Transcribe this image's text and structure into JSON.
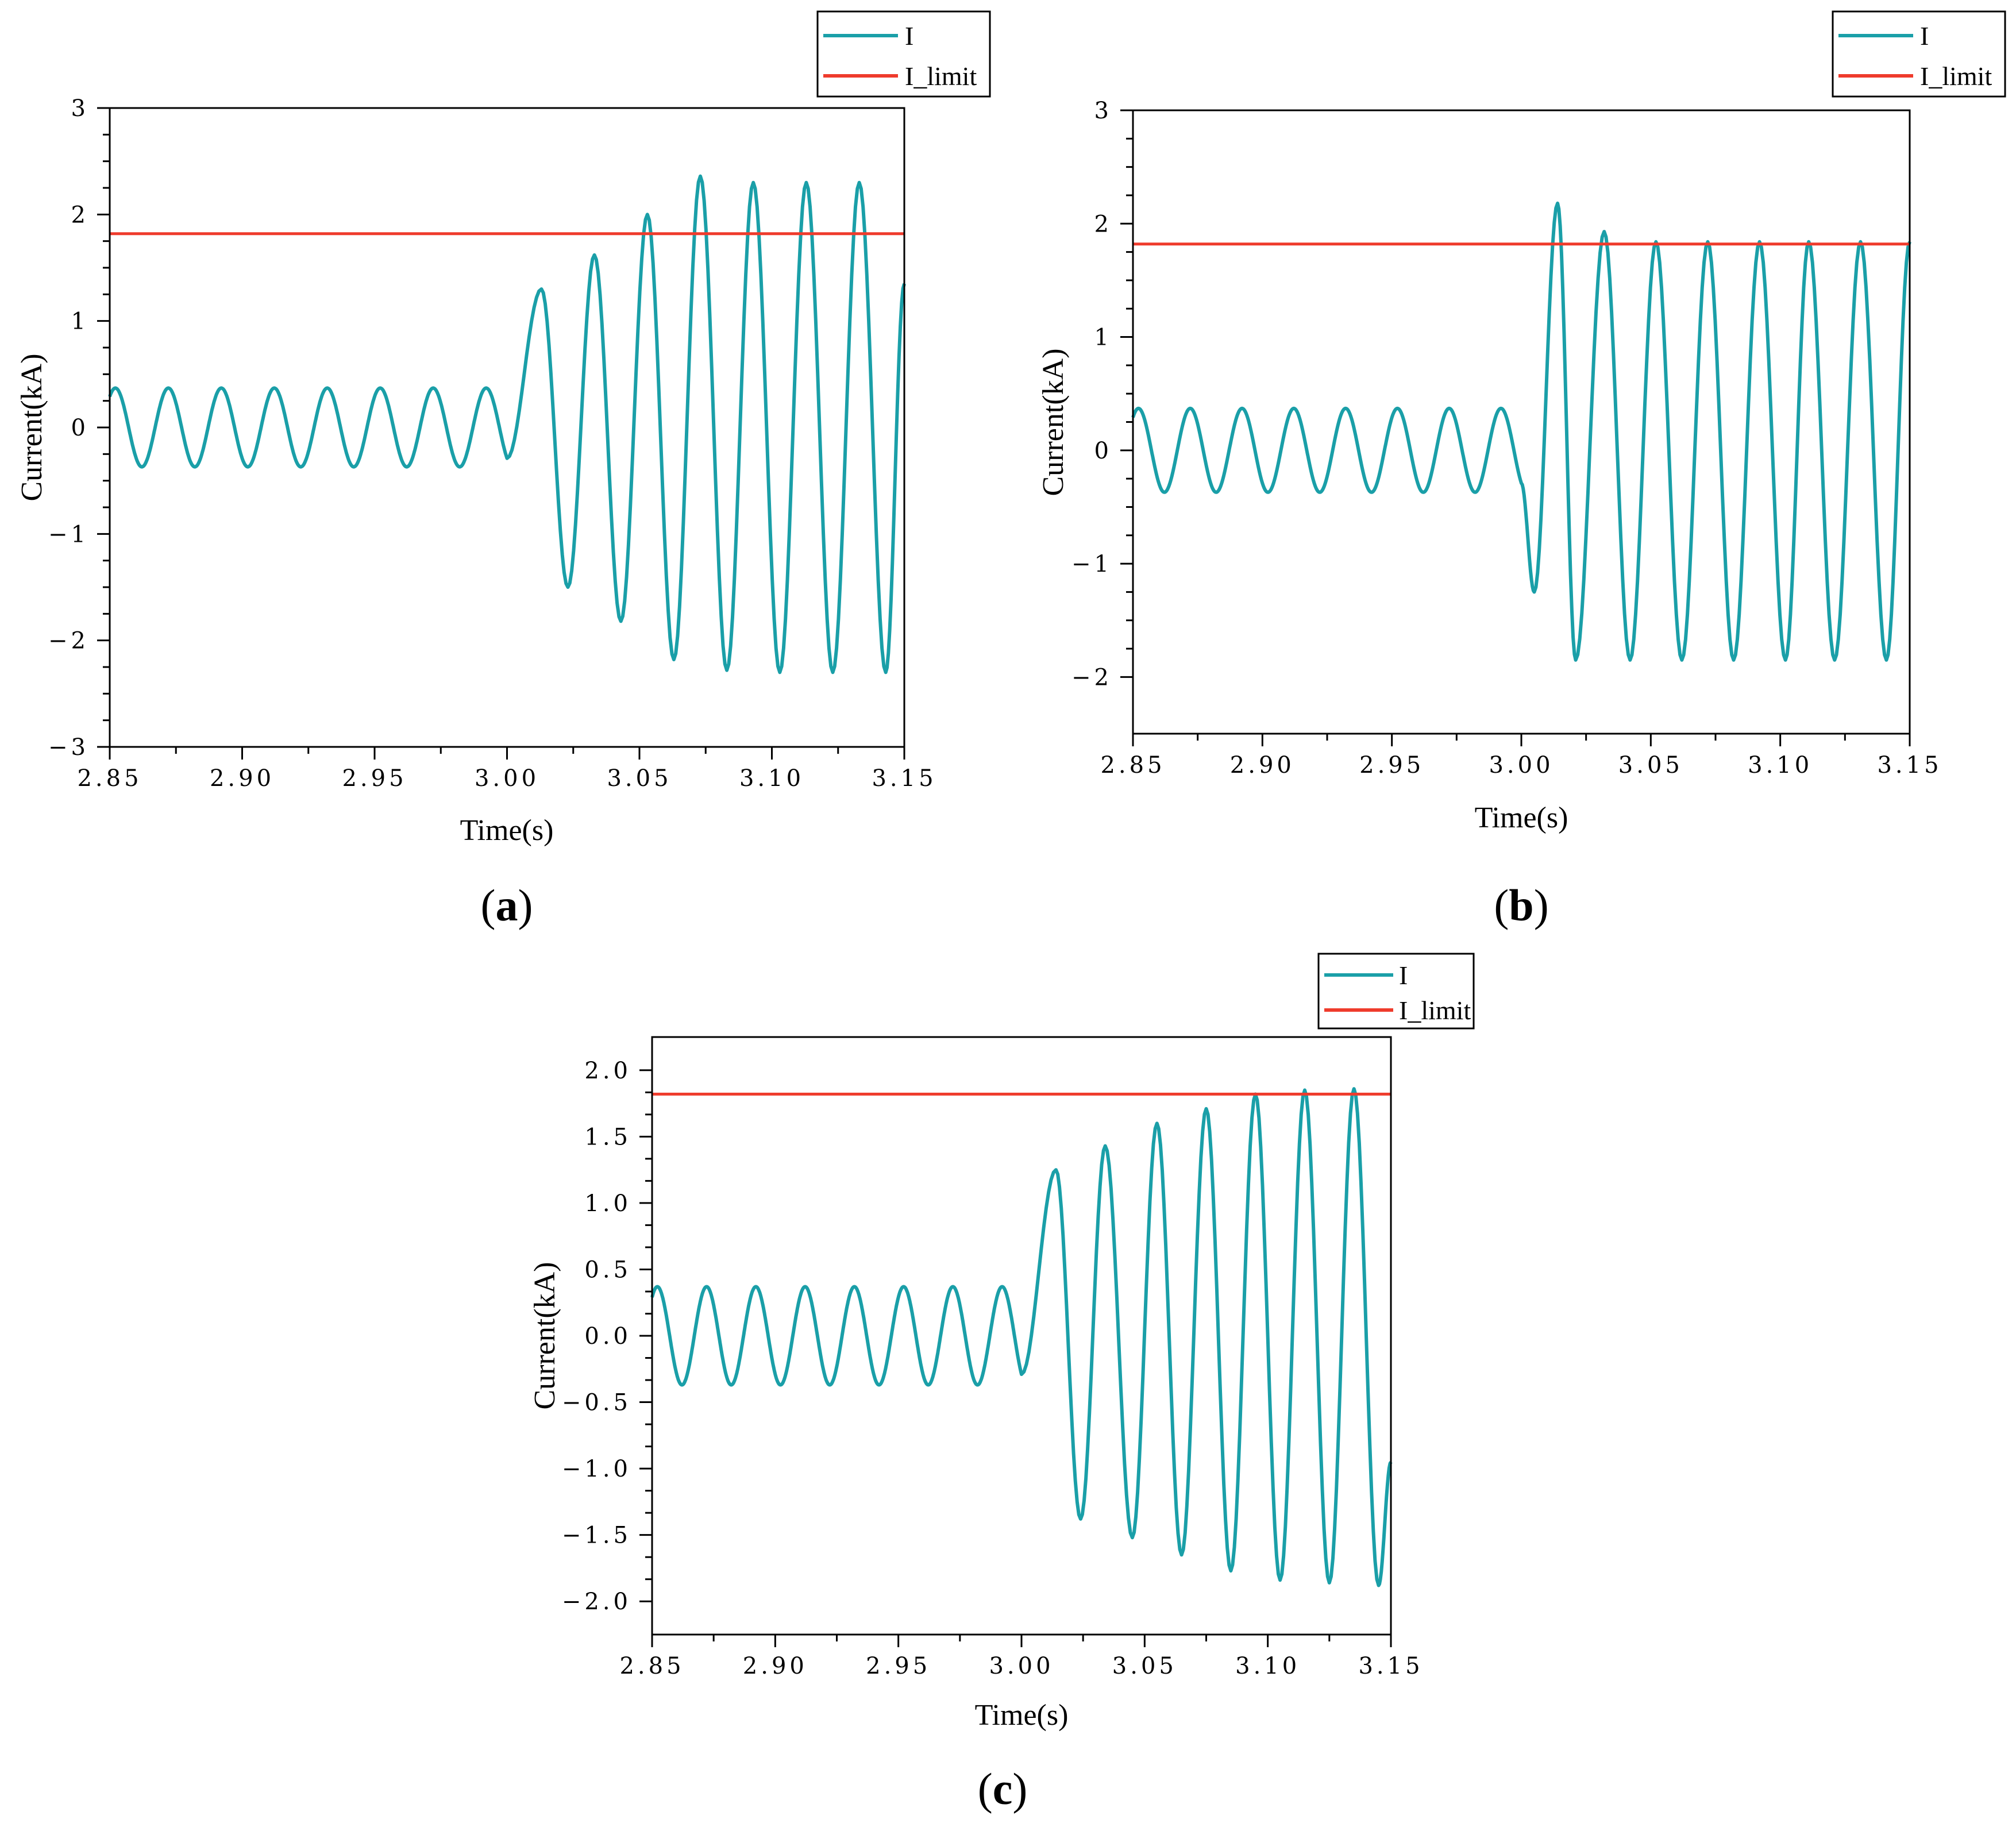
{
  "colors": {
    "current": "#1a9fa8",
    "limit": "#ef3b2c",
    "axis": "#000000"
  },
  "legend": {
    "current_label": "I",
    "limit_label": "I_limit"
  },
  "chart_data": [
    {
      "id": "a",
      "type": "line",
      "panel_label": {
        "open": "(",
        "letter": "a",
        "close": ")"
      },
      "xlabel": "Time(s)",
      "ylabel": "Current(kA)",
      "xlim": [
        2.85,
        3.15
      ],
      "ylim": [
        -3,
        3
      ],
      "xticks": [
        2.85,
        2.9,
        2.95,
        3.0,
        3.05,
        3.1,
        3.15
      ],
      "xtick_labels": [
        "2.85",
        "2.90",
        "2.95",
        "3.00",
        "3.05",
        "3.10",
        "3.15"
      ],
      "yticks": [
        -3,
        -2,
        -1,
        0,
        1,
        2,
        3
      ],
      "ytick_labels": [
        "−3",
        "−2",
        "−1",
        "0",
        "1",
        "2",
        "3"
      ],
      "limit": 1.82,
      "series": [
        {
          "name": "I",
          "frequency_hz": 50,
          "pre_fault_amplitude": 0.37,
          "fault_time": 3.0,
          "post_fault_peaks": [
            {
              "t": 3.013,
              "v": 1.3
            },
            {
              "t": 3.023,
              "v": -1.5
            },
            {
              "t": 3.033,
              "v": 1.62
            },
            {
              "t": 3.043,
              "v": -1.82
            },
            {
              "t": 3.053,
              "v": 2.0
            },
            {
              "t": 3.063,
              "v": -2.18
            },
            {
              "t": 3.073,
              "v": 2.36
            },
            {
              "t": 3.083,
              "v": -2.28
            },
            {
              "t": 3.093,
              "v": 2.3
            },
            {
              "t": 3.103,
              "v": -2.3
            },
            {
              "t": 3.113,
              "v": 2.3
            },
            {
              "t": 3.123,
              "v": -2.3
            },
            {
              "t": 3.133,
              "v": 2.3
            },
            {
              "t": 3.143,
              "v": -2.3
            },
            {
              "t": 3.15,
              "v": 1.35
            }
          ]
        },
        {
          "name": "I_limit",
          "value": 1.82
        }
      ]
    },
    {
      "id": "b",
      "type": "line",
      "panel_label": {
        "open": "(",
        "letter": "b",
        "close": ")"
      },
      "xlabel": "Time(s)",
      "ylabel": "Current(kA)",
      "xlim": [
        2.85,
        3.15
      ],
      "ylim": [
        -2.5,
        3
      ],
      "xticks": [
        2.85,
        2.9,
        2.95,
        3.0,
        3.05,
        3.1,
        3.15
      ],
      "xtick_labels": [
        "2.85",
        "2.90",
        "2.95",
        "3.00",
        "3.05",
        "3.10",
        "3.15"
      ],
      "yticks": [
        -2,
        -1,
        0,
        1,
        2,
        3
      ],
      "ytick_labels": [
        "−2",
        "−1",
        "0",
        "1",
        "2",
        "3"
      ],
      "limit": 1.82,
      "series": [
        {
          "name": "I",
          "frequency_hz": 50,
          "pre_fault_amplitude": 0.37,
          "fault_time": 3.0,
          "post_fault_peaks": [
            {
              "t": 3.005,
              "v": -1.25
            },
            {
              "t": 3.014,
              "v": 2.18
            },
            {
              "t": 3.021,
              "v": -1.85
            },
            {
              "t": 3.032,
              "v": 1.93
            },
            {
              "t": 3.042,
              "v": -1.85
            },
            {
              "t": 3.052,
              "v": 1.84
            },
            {
              "t": 3.062,
              "v": -1.85
            },
            {
              "t": 3.072,
              "v": 1.84
            },
            {
              "t": 3.082,
              "v": -1.85
            },
            {
              "t": 3.092,
              "v": 1.84
            },
            {
              "t": 3.102,
              "v": -1.85
            },
            {
              "t": 3.111,
              "v": 1.84
            },
            {
              "t": 3.121,
              "v": -1.85
            },
            {
              "t": 3.131,
              "v": 1.84
            },
            {
              "t": 3.141,
              "v": -1.85
            },
            {
              "t": 3.15,
              "v": 1.84
            }
          ]
        },
        {
          "name": "I_limit",
          "value": 1.82
        }
      ]
    },
    {
      "id": "c",
      "type": "line",
      "panel_label": {
        "open": "(",
        "letter": "c",
        "close": ")"
      },
      "xlabel": "Time(s)",
      "ylabel": "Current(kA)",
      "xlim": [
        2.85,
        3.15
      ],
      "ylim": [
        -2.25,
        2.25
      ],
      "xticks": [
        2.85,
        2.9,
        2.95,
        3.0,
        3.05,
        3.1,
        3.15
      ],
      "xtick_labels": [
        "2.85",
        "2.90",
        "2.95",
        "3.00",
        "3.05",
        "3.10",
        "3.15"
      ],
      "yticks": [
        -2.0,
        -1.5,
        -1.0,
        -0.5,
        0.0,
        0.5,
        1.0,
        1.5,
        2.0
      ],
      "ytick_labels": [
        "−2.0",
        "−1.5",
        "−1.0",
        "−0.5",
        "0.0",
        "0.5",
        "1.0",
        "1.5",
        "2.0"
      ],
      "limit": 1.82,
      "series": [
        {
          "name": "I",
          "frequency_hz": 50,
          "pre_fault_amplitude": 0.37,
          "fault_time": 3.0,
          "post_fault_peaks": [
            {
              "t": 3.014,
              "v": 1.25
            },
            {
              "t": 3.024,
              "v": -1.38
            },
            {
              "t": 3.034,
              "v": 1.43
            },
            {
              "t": 3.045,
              "v": -1.52
            },
            {
              "t": 3.055,
              "v": 1.6
            },
            {
              "t": 3.065,
              "v": -1.65
            },
            {
              "t": 3.075,
              "v": 1.71
            },
            {
              "t": 3.085,
              "v": -1.77
            },
            {
              "t": 3.095,
              "v": 1.82
            },
            {
              "t": 3.105,
              "v": -1.84
            },
            {
              "t": 3.115,
              "v": 1.85
            },
            {
              "t": 3.125,
              "v": -1.86
            },
            {
              "t": 3.135,
              "v": 1.86
            },
            {
              "t": 3.145,
              "v": -1.88
            },
            {
              "t": 3.15,
              "v": -0.95
            }
          ]
        },
        {
          "name": "I_limit",
          "value": 1.82
        }
      ]
    }
  ]
}
